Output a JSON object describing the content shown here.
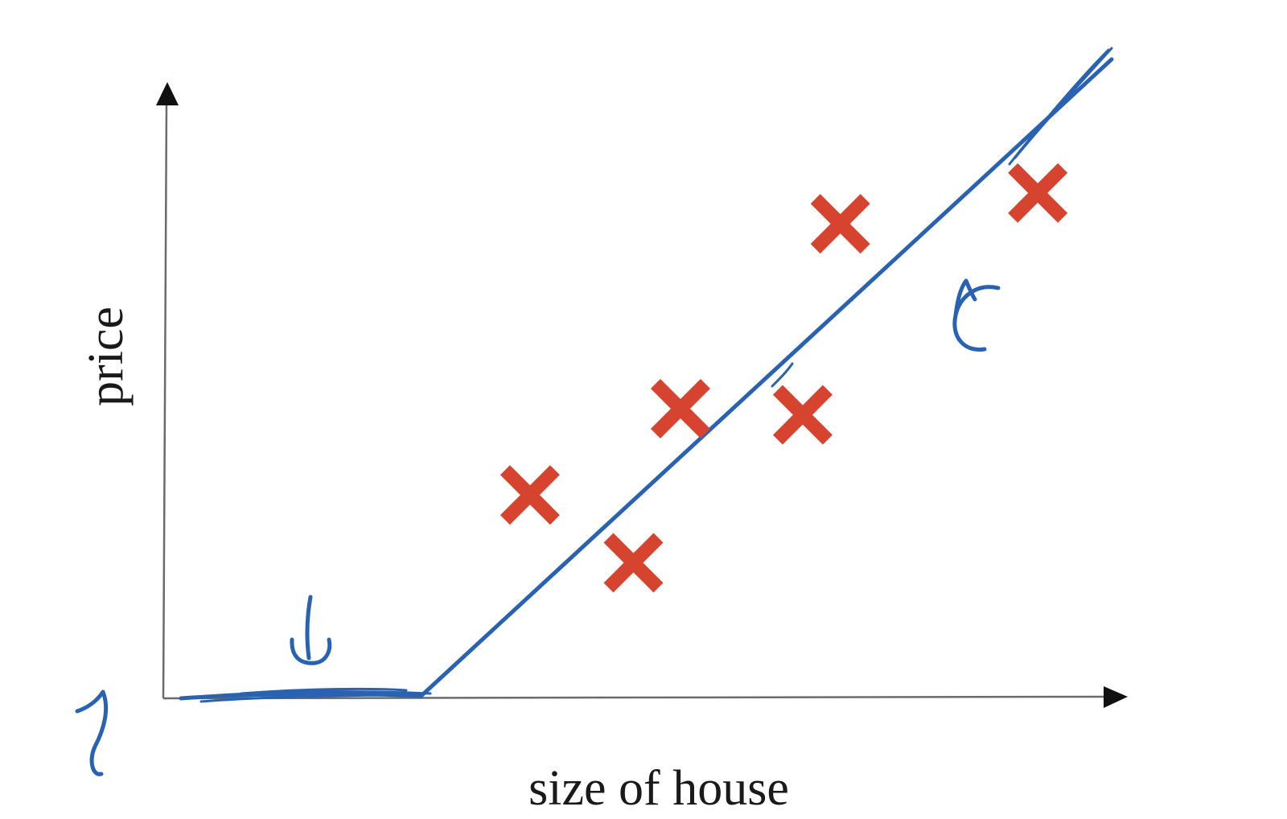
{
  "chart_data": {
    "type": "scatter",
    "title": "",
    "xlabel": "size of house",
    "ylabel": "price",
    "xlim": [
      0,
      10
    ],
    "ylim": [
      0,
      10
    ],
    "grid": false,
    "legend": "none",
    "series": [
      {
        "kind": "points",
        "marker": "x",
        "color": "#d6442f",
        "points": [
          {
            "x": 3.9,
            "y": 3.3
          },
          {
            "x": 5.0,
            "y": 2.2
          },
          {
            "x": 5.5,
            "y": 4.7
          },
          {
            "x": 6.8,
            "y": 4.6
          },
          {
            "x": 7.2,
            "y": 7.7
          },
          {
            "x": 9.3,
            "y": 8.2
          }
        ]
      },
      {
        "kind": "fit-line",
        "shape": "hand-drawn ReLU",
        "color": "#2a62b3",
        "points": [
          {
            "x": 0.0,
            "y": 0.0
          },
          {
            "x": 2.7,
            "y": 0.0
          },
          {
            "x": 10.0,
            "y": 10.5
          }
        ]
      }
    ]
  }
}
